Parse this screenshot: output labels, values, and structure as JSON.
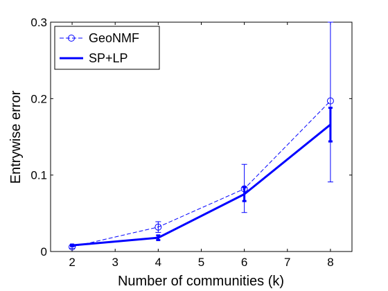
{
  "chart_data": {
    "type": "line",
    "title": "",
    "xlabel": "Number of communities (k)",
    "ylabel": "Entrywise error",
    "xlim": [
      1.5,
      8.5
    ],
    "ylim": [
      0,
      0.3
    ],
    "xticks": [
      "2",
      "3",
      "4",
      "5",
      "6",
      "7",
      "8"
    ],
    "yticks": [
      "0",
      "0.1",
      "0.2",
      "0.3"
    ],
    "grid": false,
    "legend_position": "top-left",
    "series": [
      {
        "name": "GeoNMF",
        "color": "#0000ff",
        "style": "dashed-circle-markers",
        "x": [
          2,
          4,
          6,
          8
        ],
        "y": [
          0.006,
          0.032,
          0.082,
          0.197
        ],
        "err_low": [
          0.004,
          0.025,
          0.051,
          0.091
        ],
        "err_high": [
          0.008,
          0.039,
          0.114,
          0.3
        ]
      },
      {
        "name": "SP+LP",
        "color": "#0000ff",
        "style": "solid-thick",
        "x": [
          2,
          4,
          6,
          8
        ],
        "y": [
          0.008,
          0.018,
          0.075,
          0.166
        ],
        "err_low": [
          0.007,
          0.015,
          0.066,
          0.144
        ],
        "err_high": [
          0.009,
          0.021,
          0.084,
          0.188
        ]
      }
    ]
  }
}
